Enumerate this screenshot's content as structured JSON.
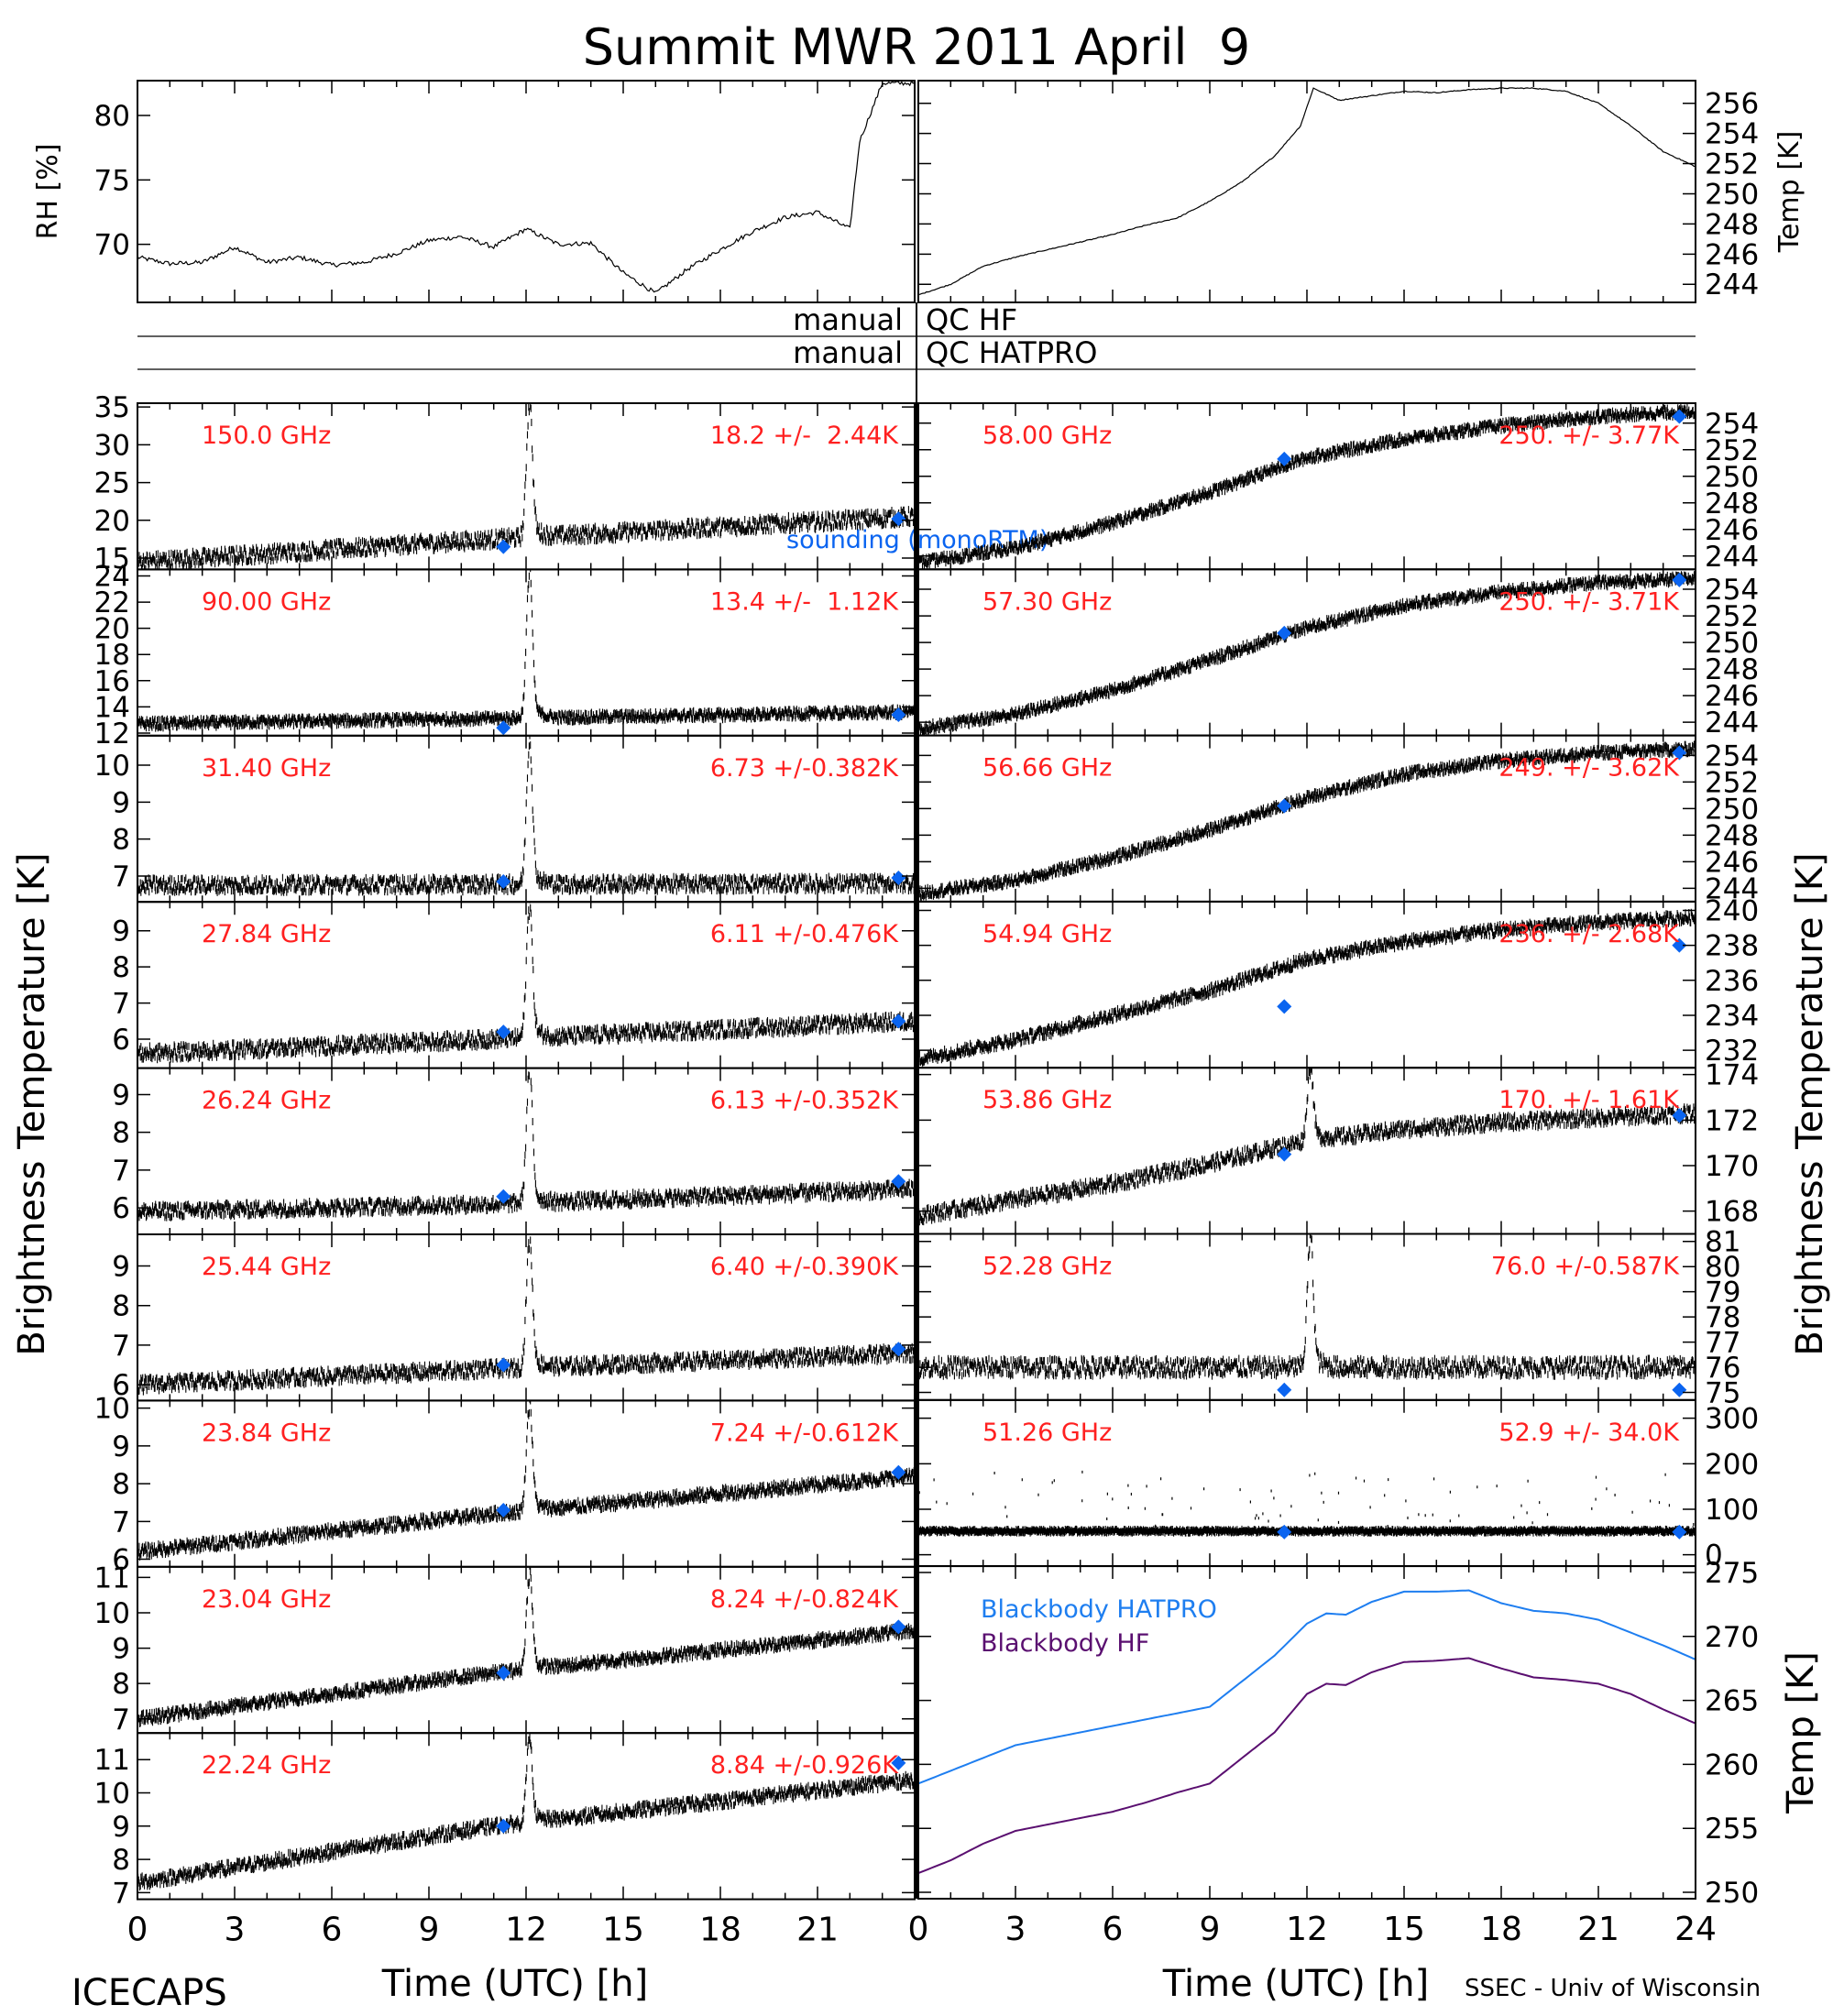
{
  "title": "Summit MWR 2011 April  9",
  "footer_left": "ICECAPS",
  "footer_right": "SSEC - Univ of Wisconsin",
  "x_axis_label": "Time (UTC) [h]",
  "x_ticks": [
    "0",
    "3",
    "6",
    "9",
    "12",
    "15",
    "18",
    "21",
    "24"
  ],
  "left_label": "Brightness Temperature [K]",
  "right_label": "Brightness Temperature [K]",
  "colors": {
    "label": "#ff2020",
    "sounding": "#0a64f0",
    "hatpro": "#1e7ef0",
    "hf": "#5a0f70",
    "trace": "#000000"
  },
  "qc": {
    "manual": "manual",
    "hf": "QC HF",
    "hatpro": "QC HATPRO"
  },
  "sounding_label": "sounding (monoRTM)",
  "chart_data": [
    {
      "id": "rh",
      "type": "line",
      "ylabel": "RH [%]",
      "ylim": [
        65.5,
        82.7
      ],
      "yticks": [
        "70",
        "75",
        "80"
      ],
      "ytick_values": [
        70,
        75,
        80
      ],
      "x": [
        0,
        1,
        2,
        3,
        4,
        5,
        6,
        7,
        8,
        9,
        10,
        11,
        12,
        13,
        14,
        15,
        16,
        17,
        18,
        19,
        20,
        21,
        22,
        22.3,
        23,
        24
      ],
      "y": [
        69,
        68.5,
        68.6,
        69.8,
        68.6,
        69,
        68.4,
        68.6,
        69.3,
        70.3,
        70.6,
        69.8,
        71.2,
        70,
        70.1,
        67.8,
        66.2,
        68.1,
        69.6,
        71,
        72.1,
        72.5,
        71.2,
        78,
        82.5,
        82.5
      ]
    },
    {
      "id": "temp",
      "type": "line",
      "ylabel": "Temp [K]",
      "ylim": [
        242.8,
        257.5
      ],
      "yticks": [
        "244",
        "246",
        "248",
        "250",
        "252",
        "254",
        "256"
      ],
      "ytick_values": [
        244,
        246,
        248,
        250,
        252,
        254,
        256
      ],
      "x": [
        0,
        1,
        2,
        3,
        4,
        5,
        6,
        7,
        8,
        9,
        10,
        11,
        11.8,
        12.2,
        13,
        14,
        15,
        16,
        17,
        18,
        19,
        20,
        21,
        22,
        23,
        24
      ],
      "y": [
        243.3,
        244,
        245.2,
        245.8,
        246.3,
        246.8,
        247.3,
        247.9,
        248.4,
        249.5,
        250.8,
        252.5,
        254.5,
        257,
        256.2,
        256.5,
        256.8,
        256.7,
        256.9,
        257,
        257,
        256.8,
        256,
        254.5,
        252.8,
        251.8
      ]
    },
    {
      "id": "ch150",
      "type": "scatter",
      "label": "150.0 GHz",
      "stats": "18.2 +/-  2.44K",
      "ylim": [
        13.5,
        35.5
      ],
      "yticks": [
        "15",
        "20",
        "25",
        "30",
        "35"
      ],
      "ytick_values": [
        15,
        20,
        25,
        30,
        35
      ],
      "base_x": [
        0,
        11,
        24
      ],
      "base_y": [
        14.5,
        17.5,
        20.5
      ],
      "noise": 1.0,
      "spike": {
        "height": 35
      },
      "sounding": [
        {
          "x": 11.3,
          "y": 16.5
        },
        {
          "x": 23.5,
          "y": 20.2
        }
      ]
    },
    {
      "id": "ch90",
      "type": "scatter",
      "label": "90.00 GHz",
      "stats": "13.4 +/-  1.12K",
      "ylim": [
        11.8,
        24.5
      ],
      "yticks": [
        "12",
        "14",
        "16",
        "18",
        "20",
        "22",
        "24"
      ],
      "ytick_values": [
        12,
        14,
        16,
        18,
        20,
        22,
        24
      ],
      "base_x": [
        0,
        24
      ],
      "base_y": [
        12.7,
        13.6
      ],
      "noise": 0.35,
      "spike": {
        "height": 24
      },
      "sounding": [
        {
          "x": 11.3,
          "y": 12.4
        },
        {
          "x": 23.5,
          "y": 13.4
        }
      ]
    },
    {
      "id": "ch31",
      "type": "scatter",
      "label": "31.40 GHz",
      "stats": "6.73 +/-0.382K",
      "ylim": [
        6.3,
        10.8
      ],
      "yticks": [
        "7",
        "8",
        "9",
        "10"
      ],
      "ytick_values": [
        7,
        8,
        9,
        10
      ],
      "base_x": [
        0,
        24
      ],
      "base_y": [
        6.75,
        6.8
      ],
      "noise": 0.2,
      "spike": {
        "height": 10.5
      },
      "sounding": [
        {
          "x": 11.3,
          "y": 6.85
        },
        {
          "x": 23.5,
          "y": 6.95
        }
      ]
    },
    {
      "id": "ch2784",
      "type": "scatter",
      "label": "27.84 GHz",
      "stats": "6.11 +/-0.476K",
      "ylim": [
        5.2,
        9.8
      ],
      "yticks": [
        "6",
        "7",
        "8",
        "9"
      ],
      "ytick_values": [
        6,
        7,
        8,
        9
      ],
      "base_x": [
        0,
        11,
        24
      ],
      "base_y": [
        5.6,
        6.0,
        6.5
      ],
      "noise": 0.2,
      "spike": {
        "height": 9.6
      },
      "sounding": [
        {
          "x": 11.3,
          "y": 6.2
        },
        {
          "x": 23.5,
          "y": 6.5
        }
      ]
    },
    {
      "id": "ch2624",
      "type": "scatter",
      "label": "26.24 GHz",
      "stats": "6.13 +/-0.352K",
      "ylim": [
        5.3,
        9.7
      ],
      "yticks": [
        "6",
        "7",
        "8",
        "9"
      ],
      "ytick_values": [
        6,
        7,
        8,
        9
      ],
      "base_x": [
        0,
        11,
        24
      ],
      "base_y": [
        5.9,
        6.1,
        6.5
      ],
      "noise": 0.18,
      "spike": {
        "height": 9.6
      },
      "sounding": [
        {
          "x": 11.3,
          "y": 6.3
        },
        {
          "x": 23.5,
          "y": 6.7
        }
      ]
    },
    {
      "id": "ch2544",
      "type": "scatter",
      "label": "25.44 GHz",
      "stats": "6.40 +/-0.390K",
      "ylim": [
        5.6,
        9.8
      ],
      "yticks": [
        "6",
        "7",
        "8",
        "9"
      ],
      "ytick_values": [
        6,
        7,
        8,
        9
      ],
      "base_x": [
        0,
        11,
        24
      ],
      "base_y": [
        6.0,
        6.4,
        6.8
      ],
      "noise": 0.18,
      "spike": {
        "height": 9.6
      },
      "sounding": [
        {
          "x": 11.3,
          "y": 6.5
        },
        {
          "x": 23.5,
          "y": 6.9
        }
      ]
    },
    {
      "id": "ch2384",
      "type": "scatter",
      "label": "23.84 GHz",
      "stats": "7.24 +/-0.612K",
      "ylim": [
        5.8,
        10.2
      ],
      "yticks": [
        "6",
        "7",
        "8",
        "9",
        "10"
      ],
      "ytick_values": [
        6,
        7,
        8,
        9,
        10
      ],
      "base_x": [
        0,
        11,
        24
      ],
      "base_y": [
        6.2,
        7.2,
        8.2
      ],
      "noise": 0.15,
      "spike": {
        "height": 10
      },
      "sounding": [
        {
          "x": 11.3,
          "y": 7.3
        },
        {
          "x": 23.5,
          "y": 8.3
        }
      ]
    },
    {
      "id": "ch2304",
      "type": "scatter",
      "label": "23.04 GHz",
      "stats": "8.24 +/-0.824K",
      "ylim": [
        6.6,
        11.3
      ],
      "yticks": [
        "7",
        "8",
        "9",
        "10",
        "11"
      ],
      "ytick_values": [
        7,
        8,
        9,
        10,
        11
      ],
      "base_x": [
        0,
        11,
        24
      ],
      "base_y": [
        7.0,
        8.3,
        9.5
      ],
      "noise": 0.15,
      "spike": {
        "height": 11
      },
      "sounding": [
        {
          "x": 11.3,
          "y": 8.3
        },
        {
          "x": 23.5,
          "y": 9.6
        }
      ]
    },
    {
      "id": "ch2224",
      "type": "scatter",
      "label": "22.24 GHz",
      "stats": "8.84 +/-0.926K",
      "ylim": [
        6.8,
        11.8
      ],
      "yticks": [
        "7",
        "8",
        "9",
        "10",
        "11"
      ],
      "ytick_values": [
        7,
        8,
        9,
        10,
        11
      ],
      "base_x": [
        0,
        11,
        24
      ],
      "base_y": [
        7.3,
        9.0,
        10.4
      ],
      "noise": 0.18,
      "spike": {
        "height": 11.5
      },
      "sounding": [
        {
          "x": 11.3,
          "y": 9.0
        },
        {
          "x": 23.5,
          "y": 10.9
        }
      ]
    },
    {
      "id": "ch58",
      "type": "scatter",
      "label": "58.00 GHz",
      "stats": "250. +/- 3.77K",
      "ylim": [
        243,
        255.5
      ],
      "yticks": [
        "244",
        "246",
        "248",
        "250",
        "252",
        "254"
      ],
      "ytick_values": [
        244,
        246,
        248,
        250,
        252,
        254
      ],
      "base_x": [
        0,
        3,
        6,
        9,
        12,
        15,
        18,
        21,
        24
      ],
      "base_y": [
        243.5,
        244.6,
        246.5,
        248.8,
        251.4,
        252.8,
        253.8,
        254.5,
        254.9
      ],
      "noise": 0.35,
      "sounding": [
        {
          "x": 11.3,
          "y": 251.3
        },
        {
          "x": 23.5,
          "y": 254.5
        }
      ]
    },
    {
      "id": "ch573",
      "type": "scatter",
      "label": "57.30 GHz",
      "stats": "250. +/- 3.71K",
      "ylim": [
        243,
        255.5
      ],
      "yticks": [
        "244",
        "246",
        "248",
        "250",
        "252",
        "254"
      ],
      "ytick_values": [
        244,
        246,
        248,
        250,
        252,
        254
      ],
      "base_x": [
        0,
        3,
        6,
        9,
        12,
        15,
        18,
        21,
        24
      ],
      "base_y": [
        243.5,
        244.6,
        246.4,
        248.7,
        251.1,
        252.8,
        253.8,
        254.5,
        254.8
      ],
      "noise": 0.35,
      "sounding": [
        {
          "x": 11.3,
          "y": 250.7
        },
        {
          "x": 23.5,
          "y": 254.7
        }
      ]
    },
    {
      "id": "ch5666",
      "type": "scatter",
      "label": "56.66 GHz",
      "stats": "249. +/- 3.62K",
      "ylim": [
        243,
        255.5
      ],
      "yticks": [
        "244",
        "246",
        "248",
        "250",
        "252",
        "254"
      ],
      "ytick_values": [
        244,
        246,
        248,
        250,
        252,
        254
      ],
      "base_x": [
        0,
        3,
        6,
        9,
        12,
        15,
        18,
        21,
        24
      ],
      "base_y": [
        243.6,
        244.6,
        246.3,
        248.4,
        250.8,
        252.6,
        253.6,
        254.2,
        254.5
      ],
      "noise": 0.35,
      "sounding": [
        {
          "x": 11.3,
          "y": 250.2
        },
        {
          "x": 23.5,
          "y": 254.2
        }
      ]
    },
    {
      "id": "ch5494",
      "type": "scatter",
      "label": "54.94 GHz",
      "stats": "236. +/- 2.68K",
      "ylim": [
        231,
        240.5
      ],
      "yticks": [
        "232",
        "234",
        "236",
        "238",
        "240"
      ],
      "ytick_values": [
        232,
        234,
        236,
        238,
        240
      ],
      "base_x": [
        0,
        3,
        6,
        9,
        12,
        15,
        18,
        21,
        24
      ],
      "base_y": [
        231.5,
        232.6,
        234,
        235.4,
        237.2,
        238.2,
        238.9,
        239.3,
        239.6
      ],
      "noise": 0.3,
      "sounding": [
        {
          "x": 11.3,
          "y": 234.5
        },
        {
          "x": 23.5,
          "y": 238
        }
      ]
    },
    {
      "id": "ch5386",
      "type": "scatter",
      "label": "53.86 GHz",
      "stats": "170. +/- 1.61K",
      "ylim": [
        167,
        174.3
      ],
      "yticks": [
        "168",
        "170",
        "172",
        "174"
      ],
      "ytick_values": [
        168,
        170,
        172,
        174
      ],
      "base_x": [
        0,
        3,
        6,
        9,
        12,
        15,
        18,
        21,
        24
      ],
      "base_y": [
        167.8,
        168.5,
        169.2,
        170.1,
        171.1,
        171.6,
        171.9,
        172.1,
        172.3
      ],
      "noise": 0.3,
      "spike": {
        "height": 174.2
      },
      "sounding": [
        {
          "x": 11.3,
          "y": 170.5
        },
        {
          "x": 23.5,
          "y": 172.2
        }
      ]
    },
    {
      "id": "ch5228",
      "type": "scatter",
      "label": "52.28 GHz",
      "stats": "76.0 +/-0.587K",
      "ylim": [
        74.7,
        81.3
      ],
      "yticks": [
        "75",
        "76",
        "77",
        "78",
        "79",
        "80",
        "81"
      ],
      "ytick_values": [
        75,
        76,
        77,
        78,
        79,
        80,
        81
      ],
      "base_x": [
        0,
        24
      ],
      "base_y": [
        76.0,
        76.0
      ],
      "noise": 0.35,
      "spike": {
        "height": 81
      },
      "sounding": [
        {
          "x": 11.3,
          "y": 75.1
        },
        {
          "x": 23.5,
          "y": 75.1
        }
      ]
    },
    {
      "id": "ch5126",
      "type": "scatter",
      "label": "51.26 GHz",
      "stats": "52.9 +/- 34.0K",
      "ylim": [
        -25,
        340
      ],
      "yticks": [
        "0",
        "100",
        "200",
        "300"
      ],
      "ytick_values": [
        0,
        100,
        200,
        300
      ],
      "base_x": [
        0,
        24
      ],
      "base_y": [
        52,
        52
      ],
      "noise": 4,
      "outliers": true,
      "sounding": [
        {
          "x": 11.3,
          "y": 50
        },
        {
          "x": 23.5,
          "y": 50
        }
      ]
    },
    {
      "id": "blackbody",
      "type": "line",
      "ylabel": "Temp [K]",
      "ylim": [
        249.5,
        275.5
      ],
      "yticks": [
        "250",
        "255",
        "260",
        "265",
        "270",
        "275"
      ],
      "ytick_values": [
        250,
        255,
        260,
        265,
        270,
        275
      ],
      "x": [
        0,
        1,
        2,
        3,
        4,
        5,
        6,
        7,
        8,
        9,
        10,
        11,
        12,
        12.6,
        13.2,
        14,
        15,
        16,
        17,
        18,
        19,
        20,
        21,
        22,
        23,
        24
      ],
      "series": [
        {
          "name": "Blackbody HATPRO",
          "color": "#1e7ef0",
          "values": [
            258.5,
            259.5,
            260.5,
            261.5,
            262,
            262.5,
            263,
            263.5,
            264,
            264.5,
            266.5,
            268.5,
            271,
            271.8,
            271.7,
            272.7,
            273.5,
            273.5,
            273.6,
            272.6,
            272,
            271.8,
            271.3,
            270.3,
            269.3,
            268.2
          ]
        },
        {
          "name": "Blackbody HF",
          "color": "#5a0f70",
          "values": [
            251.5,
            252.5,
            253.8,
            254.8,
            255.3,
            255.8,
            256.3,
            257,
            257.8,
            258.5,
            260.5,
            262.5,
            265.5,
            266.3,
            266.2,
            267.2,
            268,
            268.1,
            268.3,
            267.5,
            266.8,
            266.6,
            266.3,
            265.5,
            264.3,
            263.2
          ]
        }
      ]
    }
  ]
}
